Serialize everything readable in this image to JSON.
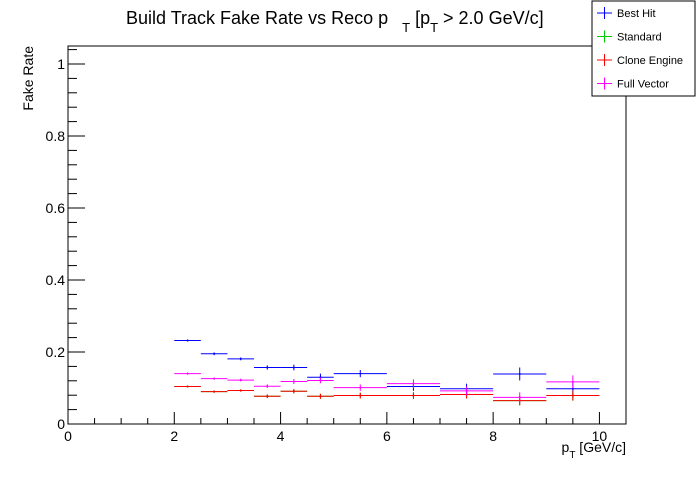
{
  "chart_data": {
    "type": "scatter",
    "title": {
      "prefix": "Build Track Fake Rate vs Reco p",
      "prefix_sub": "T",
      "middle": " [p",
      "middle_sub": "T",
      "suffix": " > 2.0 GeV/c]"
    },
    "xlabel": {
      "main": "p",
      "sub": "T",
      "rest": " [GeV/c]"
    },
    "ylabel": "Fake Rate",
    "xlim": [
      0,
      10.5
    ],
    "ylim": [
      0,
      1.05
    ],
    "x_ticks": [
      0,
      2,
      4,
      6,
      8,
      10
    ],
    "x_tick_labels": [
      "0",
      "2",
      "4",
      "6",
      "8",
      "10"
    ],
    "y_ticks": [
      0,
      0.2,
      0.4,
      0.6,
      0.8,
      1
    ],
    "y_tick_labels": [
      "0",
      "0.2",
      "0.4",
      "0.6",
      "0.8",
      "1"
    ],
    "grid": false,
    "legend_position": "top-right",
    "series": [
      {
        "name": "Best Hit",
        "color": "#0000ff",
        "points": [
          {
            "x": 2.25,
            "xerr": 0.25,
            "y": 0.232,
            "yerr": 0.003
          },
          {
            "x": 2.75,
            "xerr": 0.25,
            "y": 0.195,
            "yerr": 0.004
          },
          {
            "x": 3.25,
            "xerr": 0.25,
            "y": 0.181,
            "yerr": 0.004
          },
          {
            "x": 3.75,
            "xerr": 0.25,
            "y": 0.157,
            "yerr": 0.006
          },
          {
            "x": 4.25,
            "xerr": 0.25,
            "y": 0.157,
            "yerr": 0.008
          },
          {
            "x": 4.75,
            "xerr": 0.25,
            "y": 0.13,
            "yerr": 0.01
          },
          {
            "x": 5.5,
            "xerr": 0.5,
            "y": 0.14,
            "yerr": 0.01
          },
          {
            "x": 6.5,
            "xerr": 0.5,
            "y": 0.104,
            "yerr": 0.012
          },
          {
            "x": 7.5,
            "xerr": 0.5,
            "y": 0.098,
            "yerr": 0.014
          },
          {
            "x": 8.5,
            "xerr": 0.5,
            "y": 0.139,
            "yerr": 0.018
          },
          {
            "x": 9.5,
            "xerr": 0.5,
            "y": 0.098,
            "yerr": 0.016
          }
        ]
      },
      {
        "name": "Standard",
        "color": "#00cc00",
        "points": [
          {
            "x": 2.25,
            "xerr": 0.25,
            "y": 0.104,
            "yerr": 0.002
          },
          {
            "x": 2.75,
            "xerr": 0.25,
            "y": 0.09,
            "yerr": 0.003
          },
          {
            "x": 3.25,
            "xerr": 0.25,
            "y": 0.093,
            "yerr": 0.003
          },
          {
            "x": 3.75,
            "xerr": 0.25,
            "y": 0.077,
            "yerr": 0.005
          },
          {
            "x": 4.25,
            "xerr": 0.25,
            "y": 0.091,
            "yerr": 0.006
          },
          {
            "x": 4.75,
            "xerr": 0.25,
            "y": 0.077,
            "yerr": 0.007
          },
          {
            "x": 5.5,
            "xerr": 0.5,
            "y": 0.079,
            "yerr": 0.008
          },
          {
            "x": 6.5,
            "xerr": 0.5,
            "y": 0.079,
            "yerr": 0.009
          },
          {
            "x": 7.5,
            "xerr": 0.5,
            "y": 0.082,
            "yerr": 0.011
          },
          {
            "x": 8.5,
            "xerr": 0.5,
            "y": 0.065,
            "yerr": 0.013
          },
          {
            "x": 9.5,
            "xerr": 0.5,
            "y": 0.079,
            "yerr": 0.014
          }
        ]
      },
      {
        "name": "Clone Engine",
        "color": "#ff0000",
        "points": [
          {
            "x": 2.25,
            "xerr": 0.25,
            "y": 0.104,
            "yerr": 0.002
          },
          {
            "x": 2.75,
            "xerr": 0.25,
            "y": 0.09,
            "yerr": 0.003
          },
          {
            "x": 3.25,
            "xerr": 0.25,
            "y": 0.093,
            "yerr": 0.003
          },
          {
            "x": 3.75,
            "xerr": 0.25,
            "y": 0.077,
            "yerr": 0.005
          },
          {
            "x": 4.25,
            "xerr": 0.25,
            "y": 0.091,
            "yerr": 0.006
          },
          {
            "x": 4.75,
            "xerr": 0.25,
            "y": 0.077,
            "yerr": 0.007
          },
          {
            "x": 5.5,
            "xerr": 0.5,
            "y": 0.079,
            "yerr": 0.008
          },
          {
            "x": 6.5,
            "xerr": 0.5,
            "y": 0.079,
            "yerr": 0.009
          },
          {
            "x": 7.5,
            "xerr": 0.5,
            "y": 0.082,
            "yerr": 0.011
          },
          {
            "x": 8.5,
            "xerr": 0.5,
            "y": 0.065,
            "yerr": 0.013
          },
          {
            "x": 9.5,
            "xerr": 0.5,
            "y": 0.079,
            "yerr": 0.014
          }
        ]
      },
      {
        "name": "Full Vector",
        "color": "#ff00ff",
        "points": [
          {
            "x": 2.25,
            "xerr": 0.25,
            "y": 0.14,
            "yerr": 0.003
          },
          {
            "x": 2.75,
            "xerr": 0.25,
            "y": 0.126,
            "yerr": 0.003
          },
          {
            "x": 3.25,
            "xerr": 0.25,
            "y": 0.122,
            "yerr": 0.004
          },
          {
            "x": 3.75,
            "xerr": 0.25,
            "y": 0.105,
            "yerr": 0.005
          },
          {
            "x": 4.25,
            "xerr": 0.25,
            "y": 0.118,
            "yerr": 0.007
          },
          {
            "x": 4.75,
            "xerr": 0.25,
            "y": 0.121,
            "yerr": 0.008
          },
          {
            "x": 5.5,
            "xerr": 0.5,
            "y": 0.101,
            "yerr": 0.009
          },
          {
            "x": 6.5,
            "xerr": 0.5,
            "y": 0.112,
            "yerr": 0.012
          },
          {
            "x": 7.5,
            "xerr": 0.5,
            "y": 0.092,
            "yerr": 0.012
          },
          {
            "x": 8.5,
            "xerr": 0.5,
            "y": 0.074,
            "yerr": 0.014
          },
          {
            "x": 9.5,
            "xerr": 0.5,
            "y": 0.117,
            "yerr": 0.018
          }
        ]
      }
    ]
  }
}
